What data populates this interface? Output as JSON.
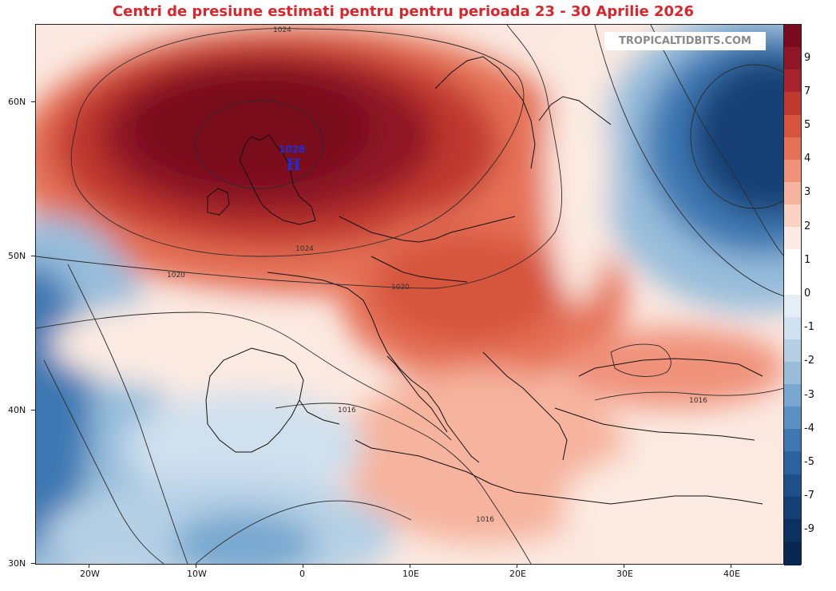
{
  "title": "Centri de presiune estimati pentru pentru perioada 23 - 30 Aprilie 2026",
  "watermark": "TROPICALTIDBITS.COM",
  "high_center": {
    "pressure": "1028",
    "symbol": "H"
  },
  "contour_labels": [
    "1024",
    "1024",
    "1020",
    "1020",
    "1016",
    "1016",
    "1016"
  ],
  "colorbar": {
    "labels": [
      "9",
      "7",
      "5",
      "4",
      "3",
      "2",
      "1",
      "0",
      "-1",
      "-2",
      "-3",
      "-4",
      "-5",
      "-7",
      "-9"
    ],
    "colors": [
      "#7a0a1e",
      "#8f1625",
      "#a7232b",
      "#c0392f",
      "#d6543d",
      "#e57157",
      "#f0927a",
      "#f6b39d",
      "#f9d2c2",
      "#fcebe2",
      "#ffffff",
      "#ffffff",
      "#e6eef5",
      "#cfe0ee",
      "#b5d0e5",
      "#97bddb",
      "#78a8cf",
      "#5991c2",
      "#3e78b2",
      "#2a62a0",
      "#1d4f8b",
      "#143f75",
      "#0c3060",
      "#08264f"
    ]
  },
  "lat_labels": [
    "60N",
    "50N",
    "40N",
    "30N"
  ],
  "lon_labels": [
    "20W",
    "10W",
    "0",
    "10E",
    "20E",
    "30E",
    "40E"
  ]
}
